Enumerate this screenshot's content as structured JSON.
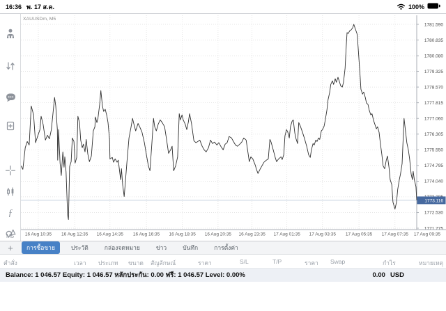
{
  "status_bar": {
    "time": "16:36",
    "date": "พ. 17 ส.ค.",
    "battery_percent": "100%"
  },
  "sidebar": {
    "timeframe": "M5"
  },
  "chart": {
    "symbol_label": "XAUUSDm, M5"
  },
  "chart_data": {
    "type": "line",
    "title": "XAUUSDm, M5",
    "symbol": "XAUUSDm",
    "timeframe": "M5",
    "grid": true,
    "ylim": [
      1771.4,
      1781.9
    ],
    "current_price": 1773.116,
    "y_ticks": [
      1781.59,
      1780.835,
      1780.08,
      1779.325,
      1778.57,
      1777.815,
      1777.06,
      1776.305,
      1775.55,
      1774.795,
      1774.04,
      1773.285,
      1772.53,
      1771.775
    ],
    "x_ticks": [
      {
        "label": "16 Aug 10:35",
        "f": 0.044
      },
      {
        "label": "16 Aug 12:35",
        "f": 0.136
      },
      {
        "label": "16 Aug 14:35",
        "f": 0.225
      },
      {
        "label": "16 Aug 16:35",
        "f": 0.317
      },
      {
        "label": "16 Aug 18:35",
        "f": 0.408
      },
      {
        "label": "16 Aug 20:35",
        "f": 0.498
      },
      {
        "label": "16 Aug 23:35",
        "f": 0.584
      },
      {
        "label": "17 Aug 01:35",
        "f": 0.672
      },
      {
        "label": "17 Aug 03:35",
        "f": 0.762
      },
      {
        "label": "17 Aug 05:35",
        "f": 0.854
      },
      {
        "label": "17 Aug 07:35",
        "f": 0.945
      },
      {
        "label": "17 Aug 09:35",
        "f": 1.035
      }
    ],
    "series": [
      {
        "name": "XAUUSDm M5 close",
        "points": [
          [
            0.0,
            1774.78
          ],
          [
            0.005,
            1774.61
          ],
          [
            0.011,
            1775.65
          ],
          [
            0.016,
            1775.95
          ],
          [
            0.021,
            1775.78
          ],
          [
            0.026,
            1777.66
          ],
          [
            0.032,
            1777.23
          ],
          [
            0.037,
            1775.89
          ],
          [
            0.042,
            1776.19
          ],
          [
            0.048,
            1776.52
          ],
          [
            0.051,
            1777.16
          ],
          [
            0.056,
            1776.79
          ],
          [
            0.062,
            1776.02
          ],
          [
            0.067,
            1776.25
          ],
          [
            0.072,
            1776.08
          ],
          [
            0.077,
            1776.52
          ],
          [
            0.085,
            1778.07
          ],
          [
            0.088,
            1777.66
          ],
          [
            0.092,
            1776.52
          ],
          [
            0.093,
            1775.05
          ],
          [
            0.095,
            1776.52
          ],
          [
            0.099,
            1774.91
          ],
          [
            0.102,
            1774.31
          ],
          [
            0.106,
            1775.45
          ],
          [
            0.109,
            1774.71
          ],
          [
            0.111,
            1775.21
          ],
          [
            0.114,
            1774.48
          ],
          [
            0.118,
            1772.43
          ],
          [
            0.12,
            1772.19
          ],
          [
            0.123,
            1774.74
          ],
          [
            0.127,
            1774.98
          ],
          [
            0.13,
            1776.12
          ],
          [
            0.134,
            1775.95
          ],
          [
            0.137,
            1774.91
          ],
          [
            0.141,
            1775.18
          ],
          [
            0.144,
            1777.16
          ],
          [
            0.148,
            1776.86
          ],
          [
            0.151,
            1776.02
          ],
          [
            0.155,
            1775.65
          ],
          [
            0.158,
            1775.82
          ],
          [
            0.162,
            1775.45
          ],
          [
            0.165,
            1776.05
          ],
          [
            0.169,
            1775.35
          ],
          [
            0.173,
            1774.98
          ],
          [
            0.178,
            1775.25
          ],
          [
            0.183,
            1776.46
          ],
          [
            0.187,
            1776.66
          ],
          [
            0.188,
            1777.13
          ],
          [
            0.192,
            1776.86
          ],
          [
            0.195,
            1777.13
          ],
          [
            0.199,
            1777.73
          ],
          [
            0.202,
            1778.4
          ],
          [
            0.206,
            1777.66
          ],
          [
            0.209,
            1777.4
          ],
          [
            0.213,
            1777.5
          ],
          [
            0.217,
            1777.19
          ],
          [
            0.22,
            1776.86
          ],
          [
            0.224,
            1776.05
          ],
          [
            0.225,
            1775.11
          ],
          [
            0.231,
            1775.18
          ],
          [
            0.234,
            1774.95
          ],
          [
            0.238,
            1775.11
          ],
          [
            0.243,
            1774.95
          ],
          [
            0.246,
            1775.05
          ],
          [
            0.252,
            1774.11
          ],
          [
            0.254,
            1774.64
          ],
          [
            0.257,
            1773.87
          ],
          [
            0.261,
            1773.3
          ],
          [
            0.264,
            1774.04
          ],
          [
            0.268,
            1774.98
          ],
          [
            0.273,
            1776.12
          ],
          [
            0.278,
            1776.62
          ],
          [
            0.282,
            1777.06
          ],
          [
            0.285,
            1776.82
          ],
          [
            0.29,
            1776.46
          ],
          [
            0.296,
            1776.82
          ],
          [
            0.301,
            1776.62
          ],
          [
            0.306,
            1776.39
          ],
          [
            0.312,
            1775.89
          ],
          [
            0.317,
            1775.31
          ],
          [
            0.322,
            1774.78
          ],
          [
            0.326,
            1774.54
          ],
          [
            0.331,
            1775.89
          ],
          [
            0.335,
            1777.06
          ],
          [
            0.338,
            1776.66
          ],
          [
            0.342,
            1776.46
          ],
          [
            0.347,
            1776.79
          ],
          [
            0.352,
            1776.99
          ],
          [
            0.357,
            1776.86
          ],
          [
            0.363,
            1776.66
          ],
          [
            0.368,
            1776.05
          ],
          [
            0.373,
            1775.38
          ],
          [
            0.379,
            1775.58
          ],
          [
            0.382,
            1775.72
          ],
          [
            0.386,
            1774.54
          ],
          [
            0.391,
            1774.78
          ],
          [
            0.396,
            1775.21
          ],
          [
            0.4,
            1777.29
          ],
          [
            0.403,
            1776.99
          ],
          [
            0.407,
            1777.23
          ],
          [
            0.41,
            1776.99
          ],
          [
            0.415,
            1776.79
          ],
          [
            0.419,
            1776.52
          ],
          [
            0.423,
            1776.89
          ],
          [
            0.426,
            1777.29
          ],
          [
            0.431,
            1776.82
          ],
          [
            0.437,
            1775.99
          ],
          [
            0.442,
            1775.89
          ],
          [
            0.447,
            1775.95
          ],
          [
            0.452,
            1776.02
          ],
          [
            0.458,
            1775.72
          ],
          [
            0.463,
            1775.55
          ],
          [
            0.468,
            1775.45
          ],
          [
            0.474,
            1775.65
          ],
          [
            0.479,
            1776.02
          ],
          [
            0.484,
            1775.85
          ],
          [
            0.489,
            1775.92
          ],
          [
            0.495,
            1775.78
          ],
          [
            0.5,
            1775.89
          ],
          [
            0.505,
            1775.72
          ],
          [
            0.511,
            1775.55
          ],
          [
            0.516,
            1775.82
          ],
          [
            0.521,
            1775.89
          ],
          [
            0.526,
            1776.19
          ],
          [
            0.532,
            1776.12
          ],
          [
            0.537,
            1775.95
          ],
          [
            0.542,
            1775.78
          ],
          [
            0.547,
            1775.72
          ],
          [
            0.553,
            1775.82
          ],
          [
            0.558,
            1775.92
          ],
          [
            0.563,
            1776.12
          ],
          [
            0.569,
            1776.02
          ],
          [
            0.574,
            1775.38
          ],
          [
            0.577,
            1774.98
          ],
          [
            0.581,
            1775.21
          ],
          [
            0.586,
            1775.11
          ],
          [
            0.592,
            1774.81
          ],
          [
            0.595,
            1774.61
          ],
          [
            0.599,
            1774.41
          ],
          [
            0.604,
            1774.61
          ],
          [
            0.609,
            1774.78
          ],
          [
            0.614,
            1774.95
          ],
          [
            0.62,
            1775.05
          ],
          [
            0.625,
            1775.11
          ],
          [
            0.629,
            1776.05
          ],
          [
            0.632,
            1775.92
          ],
          [
            0.637,
            1775.58
          ],
          [
            0.643,
            1775.15
          ],
          [
            0.646,
            1774.98
          ],
          [
            0.651,
            1775.11
          ],
          [
            0.657,
            1775.21
          ],
          [
            0.66,
            1775.08
          ],
          [
            0.664,
            1775.31
          ],
          [
            0.667,
            1776.22
          ],
          [
            0.671,
            1776.52
          ],
          [
            0.674,
            1776.42
          ],
          [
            0.678,
            1776.12
          ],
          [
            0.681,
            1776.66
          ],
          [
            0.685,
            1776.92
          ],
          [
            0.688,
            1776.99
          ],
          [
            0.692,
            1776.35
          ],
          [
            0.695,
            1776.08
          ],
          [
            0.699,
            1775.85
          ],
          [
            0.702,
            1776.86
          ],
          [
            0.706,
            1776.69
          ],
          [
            0.711,
            1776.42
          ],
          [
            0.716,
            1776.12
          ],
          [
            0.722,
            1775.72
          ],
          [
            0.727,
            1775.31
          ],
          [
            0.731,
            1775.18
          ],
          [
            0.734,
            1775.55
          ],
          [
            0.738,
            1775.85
          ],
          [
            0.741,
            1775.78
          ],
          [
            0.745,
            1776.02
          ],
          [
            0.748,
            1775.95
          ],
          [
            0.752,
            1776.12
          ],
          [
            0.755,
            1776.05
          ],
          [
            0.759,
            1776.46
          ],
          [
            0.762,
            1776.52
          ],
          [
            0.766,
            1776.69
          ],
          [
            0.769,
            1776.99
          ],
          [
            0.773,
            1777.46
          ],
          [
            0.776,
            1777.97
          ],
          [
            0.78,
            1778.3
          ],
          [
            0.783,
            1778.7
          ],
          [
            0.787,
            1778.87
          ],
          [
            0.79,
            1778.7
          ],
          [
            0.794,
            1778.97
          ],
          [
            0.797,
            1778.8
          ],
          [
            0.801,
            1779.04
          ],
          [
            0.804,
            1778.87
          ],
          [
            0.808,
            1778.63
          ],
          [
            0.812,
            1778.57
          ],
          [
            0.815,
            1778.8
          ],
          [
            0.819,
            1779.48
          ],
          [
            0.822,
            1780.58
          ],
          [
            0.824,
            1781.19
          ],
          [
            0.827,
            1781.15
          ],
          [
            0.831,
            1781.29
          ],
          [
            0.834,
            1781.32
          ],
          [
            0.838,
            1781.42
          ],
          [
            0.841,
            1781.59
          ],
          [
            0.845,
            1781.36
          ],
          [
            0.849,
            1781.15
          ],
          [
            0.85,
            1781.02
          ],
          [
            0.854,
            1779.91
          ],
          [
            0.857,
            1779.07
          ],
          [
            0.859,
            1778.47
          ],
          [
            0.863,
            1778.23
          ],
          [
            0.866,
            1778.33
          ],
          [
            0.87,
            1778.07
          ],
          [
            0.873,
            1777.8
          ],
          [
            0.877,
            1777.73
          ],
          [
            0.88,
            1777.46
          ],
          [
            0.884,
            1777.23
          ],
          [
            0.887,
            1777.29
          ],
          [
            0.891,
            1776.96
          ],
          [
            0.894,
            1776.79
          ],
          [
            0.898,
            1776.56
          ],
          [
            0.901,
            1776.66
          ],
          [
            0.905,
            1776.39
          ],
          [
            0.908,
            1775.89
          ],
          [
            0.912,
            1775.31
          ],
          [
            0.915,
            1774.78
          ],
          [
            0.919,
            1774.64
          ],
          [
            0.923,
            1775.05
          ],
          [
            0.926,
            1775.25
          ],
          [
            0.93,
            1774.71
          ],
          [
            0.933,
            1774.11
          ],
          [
            0.937,
            1773.87
          ],
          [
            0.94,
            1773.03
          ],
          [
            0.944,
            1772.76
          ],
          [
            0.945,
            1772.7
          ],
          [
            0.949,
            1773.03
          ],
          [
            0.952,
            1773.64
          ],
          [
            0.956,
            1774.11
          ],
          [
            0.959,
            1774.38
          ],
          [
            0.963,
            1774.88
          ],
          [
            0.966,
            1776.22
          ],
          [
            0.968,
            1777.06
          ],
          [
            0.972,
            1776.39
          ],
          [
            0.975,
            1775.89
          ],
          [
            0.979,
            1775.52
          ],
          [
            0.982,
            1775.11
          ],
          [
            0.986,
            1774.38
          ],
          [
            0.989,
            1774.11
          ],
          [
            0.991,
            1774.51
          ],
          [
            0.994,
            1774.11
          ],
          [
            0.998,
            1773.77
          ],
          [
            1.0,
            1773.12
          ]
        ]
      }
    ]
  },
  "tabs": {
    "active": 0,
    "add_label": "+",
    "items": [
      "การซื้อขาย",
      "ประวัติ",
      "กล่องจดหมาย",
      "ข่าว",
      "บันทึก",
      "การตั้งค่า"
    ]
  },
  "table": {
    "columns": [
      "คำสั่ง",
      "เวลา",
      "ประเภท",
      "ขนาด",
      "สัญลักษณ์",
      "ราคา",
      "S/L",
      "T/P",
      "ราคา",
      "Swap",
      "กำไร",
      "หมายเหตุ"
    ]
  },
  "account": {
    "summary": "Balance: 1 046.57 Equity: 1 046.57 หลักประกัน: 0.00 ฟรี: 1 046.57 Level: 0.00%",
    "profit": "0.00",
    "currency": "USD"
  }
}
